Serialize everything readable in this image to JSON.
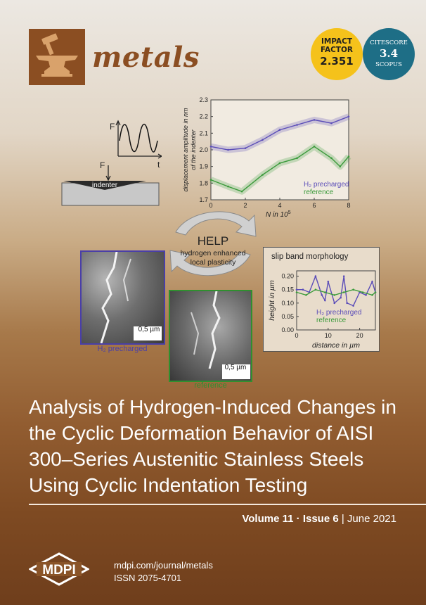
{
  "journal": {
    "name": "metals",
    "icon": "anvil-hammer-icon",
    "brand_color": "#8b4e22"
  },
  "badges": {
    "impact_factor": {
      "line1": "IMPACT",
      "line2": "FACTOR",
      "value": "2.351",
      "color": "#f5c21b"
    },
    "citescore": {
      "line1": "CITESCORE",
      "value": "3.4",
      "line2": "SCOPUS",
      "color": "#1e6e86"
    }
  },
  "figure": {
    "force_diagram": {
      "y_label": "F",
      "x_label": "t",
      "force_label": "F",
      "indenter_label": "indenter"
    },
    "chart_data": {
      "type": "line",
      "ylabel_line1": "displacement amplitude in nm",
      "ylabel_line2": "of the indenter",
      "xlabel": "N in 10",
      "xlabel_exponent": "5",
      "x_ticks": [
        "0",
        "2",
        "4",
        "6",
        "8"
      ],
      "y_ticks": [
        "1.7",
        "1.8",
        "1.9",
        "2.0",
        "2.1",
        "2.2",
        "2.3"
      ],
      "xlim": [
        0,
        8
      ],
      "ylim": [
        1.7,
        2.3
      ],
      "series": [
        {
          "name": "H₂ precharged",
          "color": "#5b4db8",
          "x": [
            0,
            1,
            2,
            3,
            4,
            5,
            6,
            7,
            8
          ],
          "y": [
            2.02,
            2.0,
            2.01,
            2.06,
            2.12,
            2.15,
            2.18,
            2.16,
            2.2
          ]
        },
        {
          "name": "reference",
          "color": "#3a9a3a",
          "x": [
            0,
            1,
            1.8,
            3,
            4,
            5,
            6,
            7,
            7.5,
            8
          ],
          "y": [
            1.82,
            1.78,
            1.75,
            1.85,
            1.92,
            1.95,
            2.02,
            1.95,
            1.9,
            1.96
          ]
        }
      ]
    },
    "help_cycle": {
      "title": "HELP",
      "line1": "hydrogen enhanced",
      "line2": "local plasticity"
    },
    "micrograph_h2": {
      "scale": "0,5 µm",
      "caption": "H₂ precharged"
    },
    "micrograph_ref": {
      "scale": "0,5 µm",
      "caption": "reference"
    },
    "slip_chart": {
      "title": "slip band morphology",
      "ylabel": "height in µm",
      "xlabel": "distance in µm",
      "x_ticks": [
        "0",
        "10",
        "20"
      ],
      "y_ticks": [
        "0.00",
        "0.05",
        "0.10",
        "0.15",
        "0.20"
      ],
      "xlim": [
        0,
        25
      ],
      "ylim": [
        0,
        0.22
      ],
      "series": [
        {
          "name": "H₂ precharged",
          "color": "#5b4db8",
          "x": [
            0,
            2,
            4,
            6,
            8,
            9,
            10,
            12,
            14,
            15,
            16,
            18,
            20,
            22,
            24,
            25
          ],
          "y": [
            0.15,
            0.15,
            0.14,
            0.2,
            0.13,
            0.11,
            0.18,
            0.1,
            0.12,
            0.2,
            0.1,
            0.09,
            0.14,
            0.13,
            0.18,
            0.14
          ]
        },
        {
          "name": "reference",
          "color": "#3a9a3a",
          "x": [
            0,
            3,
            6,
            9,
            12,
            15,
            18,
            21,
            24,
            25
          ],
          "y": [
            0.14,
            0.13,
            0.15,
            0.14,
            0.13,
            0.14,
            0.15,
            0.14,
            0.13,
            0.14
          ]
        }
      ]
    }
  },
  "title": "Analysis of Hydrogen-Induced Changes in the Cyclic Deformation Behavior of AISI 300–Series Austenitic Stainless Steels Using Cyclic Indentation Testing",
  "issue": {
    "volume": "Volume 11",
    "dot": " · ",
    "issue": "Issue 6",
    "sep": " | ",
    "date": "June 2021"
  },
  "publisher": {
    "logo": "MDPI",
    "url": "mdpi.com/journal/metals",
    "issn": "ISSN 2075-4701"
  }
}
